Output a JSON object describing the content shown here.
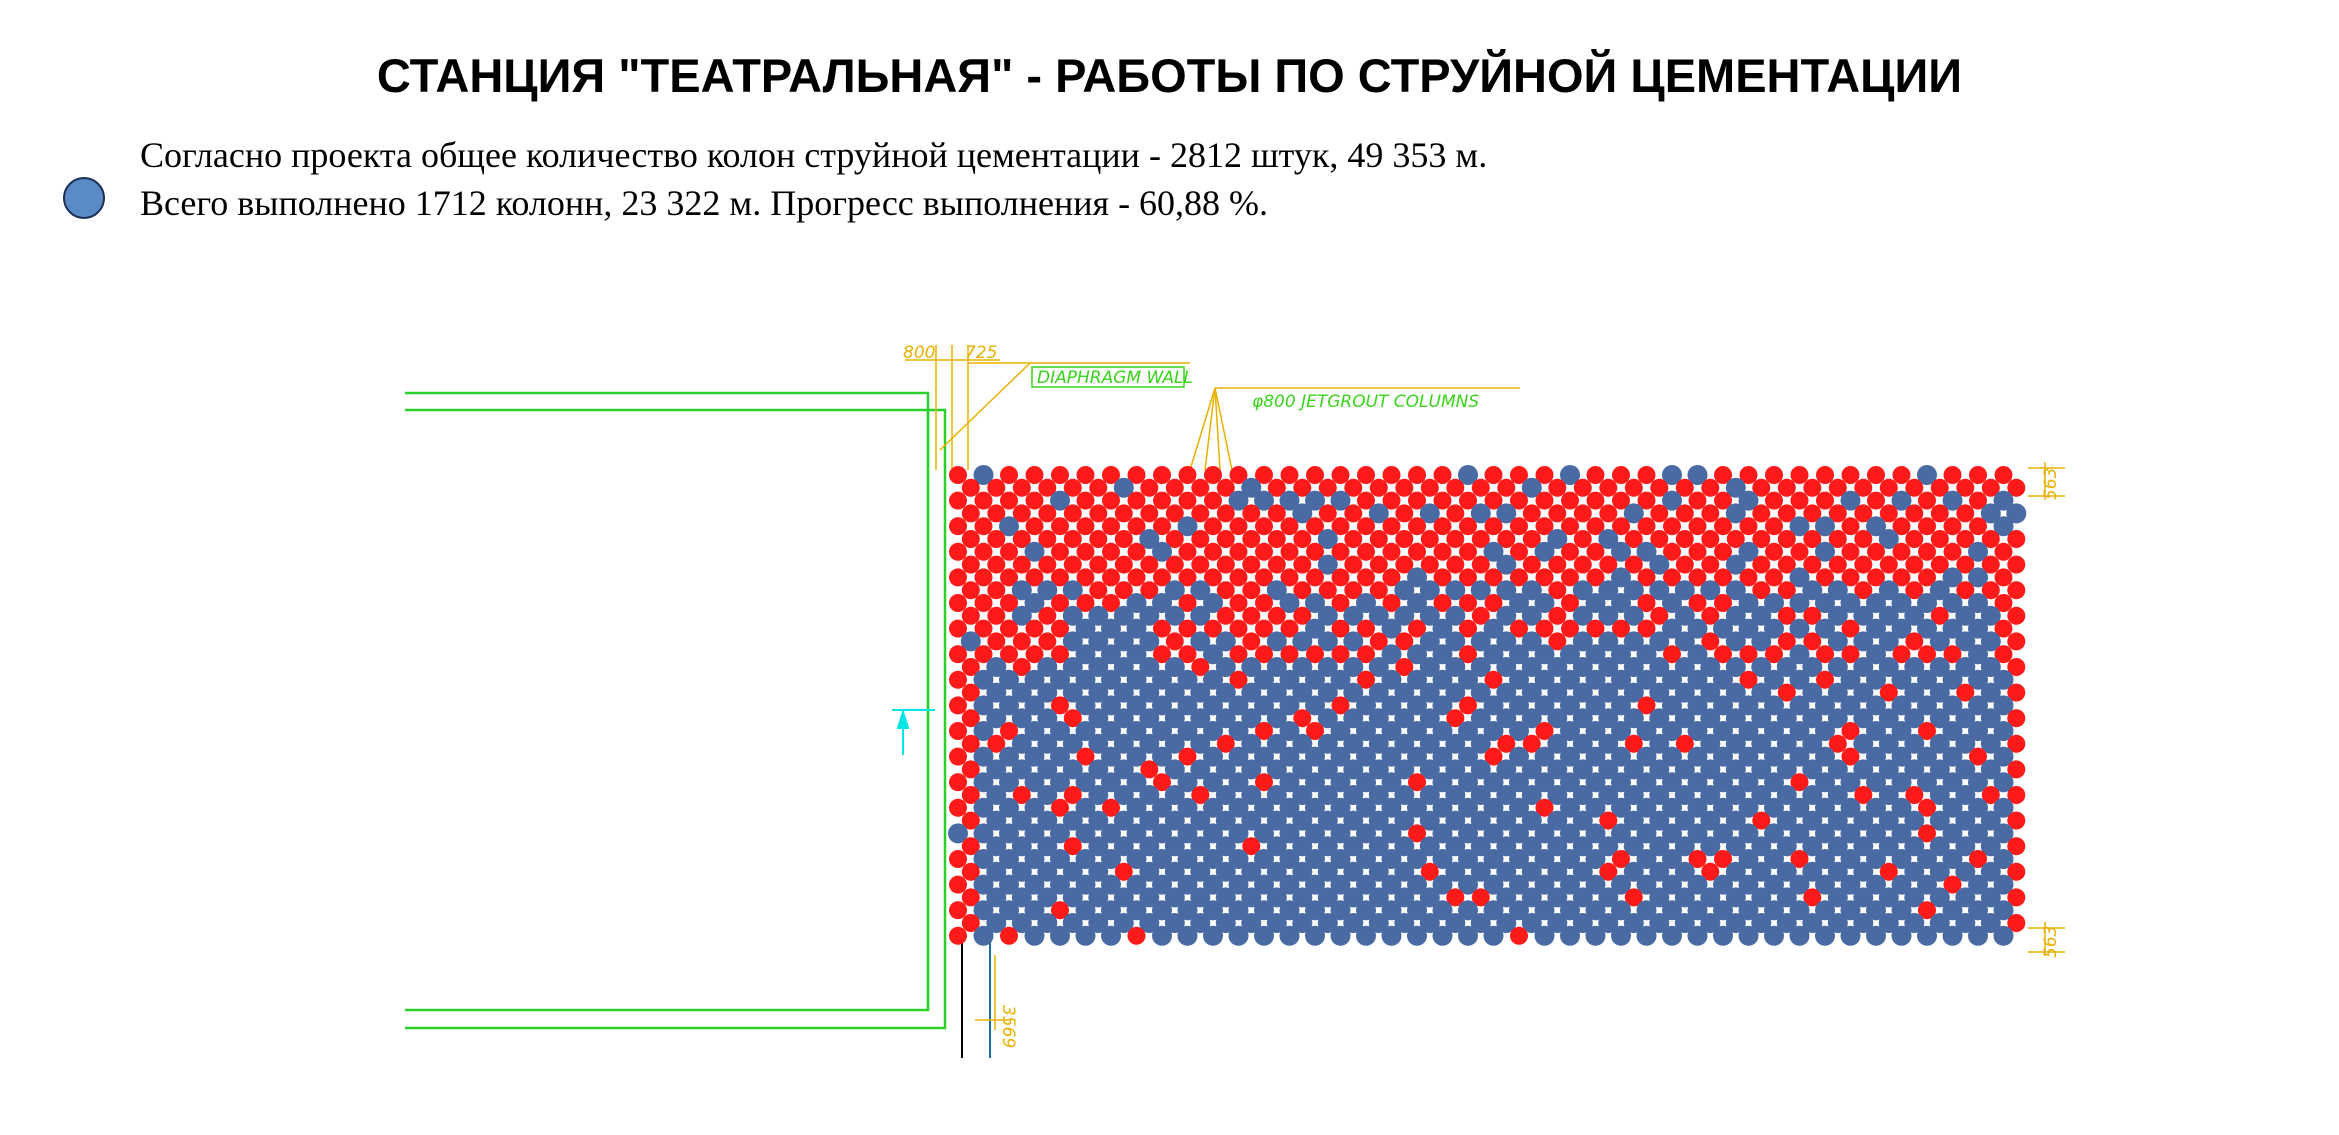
{
  "header": {
    "title": "СТАНЦИЯ \"ТЕАТРАЛЬНАЯ\" - РАБОТЫ ПО СТРУЙНОЙ ЦЕМЕНТАЦИИ"
  },
  "summary": {
    "line1": "Согласно проекта общее количество колон струйной цементации - 2812 штук, 49 353 м.",
    "line2": "Всего выполнено 1712 колонн, 23 322 м. Прогресс выполнения - 60,88 %."
  },
  "legend": {
    "completed_color": "#5b8bc7"
  },
  "drawing": {
    "dimensions": {
      "d800": "800",
      "d725": "725",
      "d563_top": "563",
      "d563_bottom": "563",
      "d3569": "3569"
    },
    "labels": {
      "diaphragm_wall": "DIAPHRAGM WALL",
      "jetgrout": "φ800 JETGROUT COLUMNS"
    },
    "colors": {
      "done": "#4a6aa3",
      "pending": "#ff1a1a",
      "wall": "#2bd12b",
      "dimension": "#e8b000",
      "marker": "#00e5e5"
    },
    "progress_percent": 60.88
  }
}
